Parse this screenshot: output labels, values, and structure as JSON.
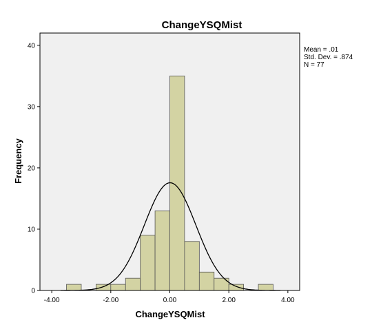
{
  "chart_data": {
    "type": "bar",
    "title": "ChangeYSQMist",
    "xlabel": "ChangeYSQMist",
    "ylabel": "Frequency",
    "xlim": [
      -4.4,
      4.4
    ],
    "ylim": [
      0,
      42
    ],
    "x_ticks": [
      "-4.00",
      "-2.00",
      "0.00",
      "2.00",
      "4.00"
    ],
    "x_tick_values": [
      -4,
      -2,
      0,
      2,
      4
    ],
    "y_ticks": [
      "0",
      "10",
      "20",
      "30",
      "40"
    ],
    "y_tick_values": [
      0,
      10,
      20,
      30,
      40
    ],
    "bin_width": 0.5,
    "bins": [
      {
        "start": -3.5,
        "end": -3.0,
        "count": 1
      },
      {
        "start": -3.0,
        "end": -2.5,
        "count": 0
      },
      {
        "start": -2.5,
        "end": -2.0,
        "count": 1
      },
      {
        "start": -2.0,
        "end": -1.5,
        "count": 1
      },
      {
        "start": -1.5,
        "end": -1.0,
        "count": 2
      },
      {
        "start": -1.0,
        "end": -0.5,
        "count": 9
      },
      {
        "start": -0.5,
        "end": 0.0,
        "count": 13
      },
      {
        "start": 0.0,
        "end": 0.5,
        "count": 35
      },
      {
        "start": 0.5,
        "end": 1.0,
        "count": 8
      },
      {
        "start": 1.0,
        "end": 1.5,
        "count": 3
      },
      {
        "start": 1.5,
        "end": 2.0,
        "count": 2
      },
      {
        "start": 2.0,
        "end": 2.5,
        "count": 1
      },
      {
        "start": 2.5,
        "end": 3.0,
        "count": 0
      },
      {
        "start": 3.0,
        "end": 3.5,
        "count": 1
      }
    ],
    "stats": {
      "mean_label": "Mean = .01",
      "std_label": "Std. Dev. = .874",
      "n_label": "N = 77",
      "mean": 0.01,
      "std": 0.874,
      "n": 77
    },
    "normal_curve": true,
    "grid": false,
    "colors": {
      "bar_fill": "#D3D3A3",
      "bar_stroke": "#555555",
      "plot_background": "#F0F0F0",
      "curve": "#000000"
    }
  }
}
